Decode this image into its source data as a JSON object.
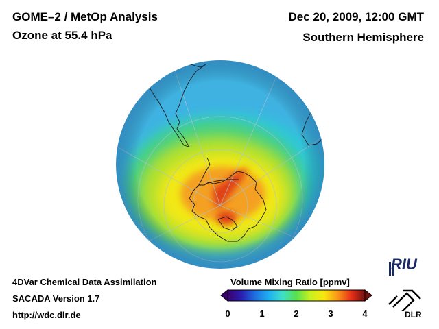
{
  "header": {
    "title_line1": "GOME–2 / MetOp Analysis",
    "title_line2": "Ozone at 55.4 hPa",
    "datetime": "Dec 20, 2009, 12:00 GMT",
    "hemisphere": "Southern Hemisphere"
  },
  "footer": {
    "line1": "4DVar Chemical Data Assimilation",
    "line2": "SACADA Version 1.7",
    "line3": "http://wdc.dlr.de"
  },
  "colorbar": {
    "title": "Volume Mixing Ratio [ppmv]",
    "min": 0,
    "max": 4,
    "tick_labels": [
      "0",
      "1",
      "2",
      "3",
      "4"
    ],
    "colors": [
      "#3b0070",
      "#2a1fb0",
      "#1f6fe0",
      "#1fb0f0",
      "#3fe0c8",
      "#58e050",
      "#c8f020",
      "#f8e810",
      "#f89818",
      "#e83018",
      "#701010"
    ]
  },
  "logos": {
    "riu": "RIU",
    "dlr": "DLR"
  },
  "colors": {
    "ocean_field": "#3fb2e2",
    "coast": "#1a1a1a",
    "grid": "#a8c4d4"
  }
}
